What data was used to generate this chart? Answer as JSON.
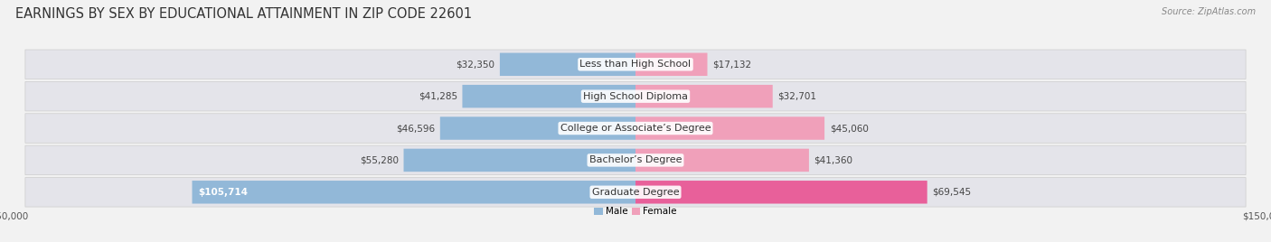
{
  "title": "EARNINGS BY SEX BY EDUCATIONAL ATTAINMENT IN ZIP CODE 22601",
  "source": "Source: ZipAtlas.com",
  "categories": [
    "Less than High School",
    "High School Diploma",
    "College or Associate’s Degree",
    "Bachelor’s Degree",
    "Graduate Degree"
  ],
  "male_values": [
    32350,
    41285,
    46596,
    55280,
    105714
  ],
  "female_values": [
    17132,
    32701,
    45060,
    41360,
    69545
  ],
  "male_color": "#92b8d8",
  "female_color": "#f0a0ba",
  "female_color_grad": "#e8609a",
  "max_value": 150000,
  "bg_color": "#f2f2f2",
  "row_bg_color": "#e8e8ec",
  "row_bg_color2": "#dcdce4",
  "title_fontsize": 10.5,
  "label_fontsize": 8,
  "value_fontsize": 7.5,
  "axis_label_fontsize": 7.5,
  "source_fontsize": 7
}
